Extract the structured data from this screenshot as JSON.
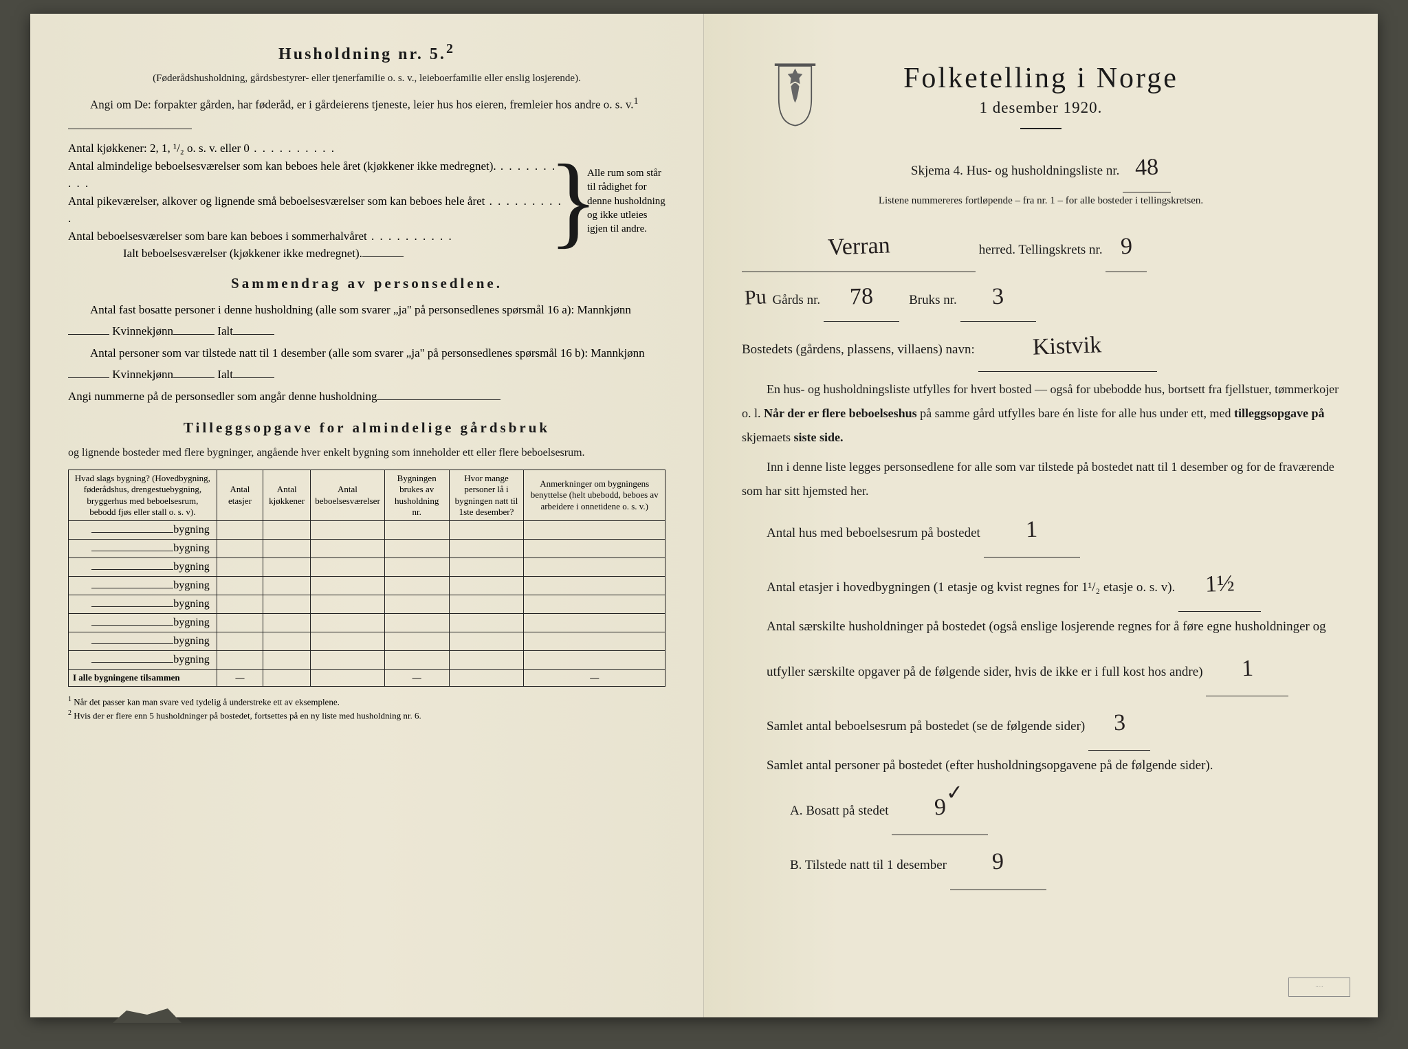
{
  "colors": {
    "paper": "#ece7d5",
    "ink": "#1a1a1a",
    "handwriting": "#252020",
    "background": "#4a4a42"
  },
  "left": {
    "h5_title": "Husholdning nr. 5.",
    "h5_sup": "2",
    "h5_sub": "(Føderådshusholdning, gårdsbestyrer- eller tjenerfamilie o. s. v., leieboerfamilie eller enslig losjerende).",
    "angi": "Angi om De: forpakter gården, har føderåd, er i gårdeierens tjeneste, leier hus hos eieren, fremleier hos andre o. s. v.",
    "angi_sup": "1",
    "kjokken": "Antal kjøkkener: 2, 1, ¹/₂ o. s. v. eller 0",
    "alm": "Antal almindelige beboelsesværelser som kan beboes hele året (kjøkkener ikke medregnet).",
    "pike": "Antal pikeværelser, alkover og lignende små beboelsesværelser som kan beboes hele året",
    "sommer": "Antal beboelsesværelser som bare kan beboes i sommerhalvåret",
    "ialt": "Ialt beboelsesværelser (kjøkkener ikke medregnet).",
    "brace_note": "Alle rum som står til rådighet for denne husholdning og ikke utleies igjen til andre.",
    "sammendrag_title": "Sammendrag av personsedlene.",
    "s_line1a": "Antal fast bosatte personer i denne husholdning (alle som svarer „ja\" på personsedlenes spørsmål 16 a): Mannkjønn",
    "s_kvinne": "Kvinnekjønn",
    "s_ialt": "Ialt",
    "s_line2a": "Antal personer som var tilstede natt til 1 desember (alle som svarer „ja\" på personsedlenes spørsmål 16 b): Mannkjønn",
    "s_angi": "Angi nummerne på de personsedler som angår denne husholdning",
    "tillegg_title": "Tilleggsopgave for almindelige gårdsbruk",
    "tillegg_sub": "og lignende bosteder med flere bygninger, angående hver enkelt bygning som inneholder ett eller flere beboelsesrum.",
    "table": {
      "headers": [
        "Hvad slags bygning?\n(Hovedbygning, føderådshus, drengestuebygning, bryggerhus med beboelsesrum, bebodd fjøs eller stall o. s. v).",
        "Antal etasjer",
        "Antal kjøkkener",
        "Antal beboelsesværelser",
        "Bygningen brukes av husholdning nr.",
        "Hvor mange personer lå i bygningen natt til 1ste desember?",
        "Anmerkninger om bygningens benyttelse (helt ubebodd, beboes av arbeidere i onnetidene o. s. v.)"
      ],
      "row_label": "bygning",
      "row_count": 8,
      "total_label": "I alle bygningene tilsammen"
    },
    "footnote1": "Når det passer kan man svare ved tydelig å understreke ett av eksemplene.",
    "footnote2": "Hvis der er flere enn 5 husholdninger på bostedet, fortsettes på en ny liste med husholdning nr. 6."
  },
  "right": {
    "title": "Folketelling i Norge",
    "date": "1 desember 1920.",
    "skjema": "Skjema 4.  Hus- og husholdningsliste nr.",
    "liste_nr": "48",
    "liste_note": "Listene nummereres fortløpende – fra nr. 1 – for alle bosteder i tellingskretsen.",
    "herred_value": "Verran",
    "herred_label": "herred.  Tellingskrets nr.",
    "krets_nr": "9",
    "prefix": "Pu",
    "gards_label": "Gårds nr.",
    "gards_nr": "78",
    "bruks_label": "Bruks nr.",
    "bruks_nr": "3",
    "bostedets_label": "Bostedets (gårdens, plassens, villaens) navn:",
    "bostedets_value": "Kistvik",
    "para1": "En hus- og husholdningsliste utfylles for hvert bosted — også for ubebodde hus, bortsett fra fjellstuer, tømmerkojer o. l.  Når der er flere beboelseshus på samme gård utfylles bare én liste for alle hus under ett, med tilleggsopgave på skjemaets siste side.",
    "para2": "Inn i denne liste legges personsedlene for alle som var tilstede på bostedet natt til 1 desember og for de fraværende som har sitt hjemsted her.",
    "q1": "Antal hus med beboelsesrum på bostedet",
    "a1": "1",
    "q2a": "Antal etasjer i hovedbygningen (1 etasje og kvist regnes for 1¹/₂ etasje o. s. v).",
    "a2": "1½",
    "q3": "Antal særskilte husholdninger på bostedet (også enslige losjerende regnes for å føre egne husholdninger og utfyller særskilte opgaver på de følgende sider, hvis de ikke er i full kost hos andre)",
    "a3": "1",
    "q4": "Samlet antal beboelsesrum på bostedet (se de følgende sider)",
    "a4": "3",
    "q5": "Samlet antal personer på bostedet (efter husholdningsopgavene på de følgende sider).",
    "qA": "A.  Bosatt på stedet",
    "aA": "9",
    "aA_mark": "✓",
    "qB": "B.  Tilstede natt til 1 desember",
    "aB": "9"
  }
}
